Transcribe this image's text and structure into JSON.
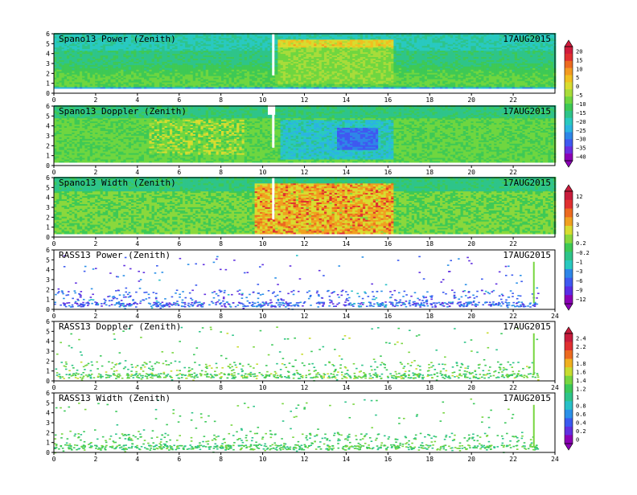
{
  "colors": {
    "power_doppler_scale": [
      "#8b00b5",
      "#6a2de0",
      "#3f59f0",
      "#2e86e8",
      "#2bb5e0",
      "#29c9c0",
      "#2ec48a",
      "#3ec955",
      "#6fd640",
      "#a8dc3a",
      "#d8dc30",
      "#f0c020",
      "#f39a20",
      "#ec6a20",
      "#e03030",
      "#d01c3c"
    ],
    "width_scale": [
      "#8b00b5",
      "#5a2de5",
      "#3f59f0",
      "#2e86e8",
      "#29c9c0",
      "#2ec48a",
      "#3ec955",
      "#8ad83c",
      "#d8dc30",
      "#f0a020",
      "#ec6a20",
      "#e03030",
      "#c81c3c"
    ],
    "rass_scale": [
      "#8b00b5",
      "#6030e0",
      "#3a5af0",
      "#2b90e8",
      "#28c0c8",
      "#2ec48a",
      "#3cc95a",
      "#78d640",
      "#c8dc30",
      "#f0b020",
      "#ec6a20",
      "#e03030",
      "#c81c3c"
    ]
  },
  "chart_data": [
    {
      "type": "heatmap",
      "title": "Spano13 Power (Zenith)",
      "date": "17AUG2015",
      "xticks": [
        "0",
        "2",
        "4",
        "6",
        "8",
        "10",
        "12",
        "14",
        "16",
        "18",
        "20",
        "22"
      ],
      "yticks": [
        "0",
        "1",
        "2",
        "3",
        "4",
        "5",
        "6"
      ],
      "xlim": [
        0,
        24
      ],
      "ylim": [
        0,
        6
      ],
      "colorbar": "power_doppler"
    },
    {
      "type": "heatmap",
      "title": "Spano13 Doppler (Zenith)",
      "date": "17AUG2015",
      "xticks": [
        "0",
        "2",
        "4",
        "6",
        "8",
        "10",
        "12",
        "14",
        "16",
        "18",
        "20",
        "22"
      ],
      "yticks": [
        "0",
        "1",
        "2",
        "3",
        "4",
        "5",
        "6"
      ],
      "xlim": [
        0,
        24
      ],
      "ylim": [
        0,
        6
      ]
    },
    {
      "type": "heatmap",
      "title": "Spano13 Width (Zenith)",
      "date": "17AUG2015",
      "xticks": [
        "0",
        "2",
        "4",
        "6",
        "8",
        "10",
        "12",
        "14",
        "16",
        "18",
        "20",
        "22"
      ],
      "yticks": [
        "0",
        "1",
        "2",
        "3",
        "4",
        "5",
        "6"
      ],
      "xlim": [
        0,
        24
      ],
      "ylim": [
        0,
        6
      ],
      "colorbar": "width"
    },
    {
      "type": "heatmap",
      "title": "RASS13 Power (Zenith)",
      "date": "17AUG2015",
      "xticks": [
        "0",
        "2",
        "4",
        "6",
        "8",
        "10",
        "12",
        "14",
        "16",
        "18",
        "20",
        "22",
        "24"
      ],
      "yticks": [
        "0",
        "1",
        "2",
        "3",
        "4",
        "5",
        "6"
      ],
      "xlim": [
        0,
        24
      ],
      "ylim": [
        0,
        6
      ]
    },
    {
      "type": "heatmap",
      "title": "RASS13 Doppler (Zenith)",
      "date": "17AUG2015",
      "xticks": [
        "0",
        "2",
        "4",
        "6",
        "8",
        "10",
        "12",
        "14",
        "16",
        "18",
        "20",
        "22",
        "24"
      ],
      "yticks": [
        "0",
        "1",
        "2",
        "3",
        "4",
        "5",
        "6"
      ],
      "xlim": [
        0,
        24
      ],
      "ylim": [
        0,
        6
      ],
      "colorbar": "rass"
    },
    {
      "type": "heatmap",
      "title": "RASS13 Width (Zenith)",
      "date": "17AUG2015",
      "xticks": [
        "0",
        "2",
        "4",
        "6",
        "8",
        "10",
        "12",
        "14",
        "16",
        "18",
        "20",
        "22",
        "24"
      ],
      "yticks": [
        "0",
        "1",
        "2",
        "3",
        "4",
        "5",
        "6"
      ],
      "xlim": [
        0,
        24
      ],
      "ylim": [
        0,
        6
      ]
    }
  ],
  "colorbars": {
    "power_doppler": [
      "20",
      "15",
      "10",
      "5",
      "0",
      "−5",
      "−10",
      "−15",
      "−20",
      "−25",
      "−30",
      "−35",
      "−40"
    ],
    "width": [
      "12",
      "9",
      "6",
      "3",
      "1",
      "0.2",
      "−0.2",
      "−1",
      "−3",
      "−6",
      "−9",
      "−12"
    ],
    "rass": [
      "2.4",
      "2.2",
      "2",
      "1.8",
      "1.6",
      "1.4",
      "1.2",
      "1",
      "0.8",
      "0.6",
      "0.4",
      "0.2",
      "0"
    ]
  }
}
